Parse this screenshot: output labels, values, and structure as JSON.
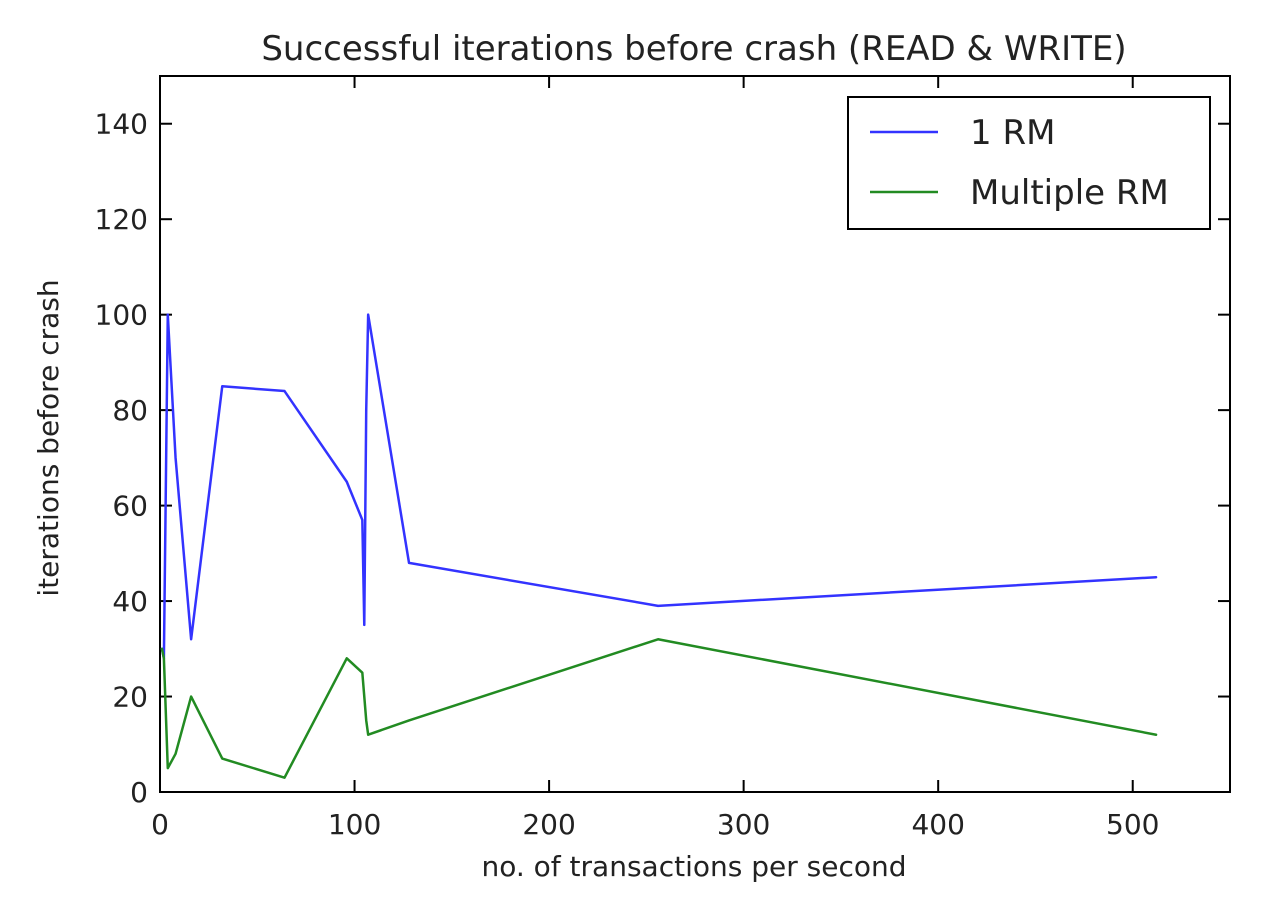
{
  "chart_data": {
    "type": "line",
    "title": "Successful iterations before crash (READ & WRITE)",
    "xlabel": "no. of transactions per second",
    "ylabel": "iterations before crash",
    "xlim": [
      0,
      550
    ],
    "ylim": [
      0,
      150
    ],
    "xticks": [
      0,
      100,
      200,
      300,
      400,
      500
    ],
    "yticks": [
      0,
      20,
      40,
      60,
      80,
      100,
      120,
      140
    ],
    "grid": false,
    "legend_position": "top-right",
    "series": [
      {
        "name": "1 RM",
        "color": "#3333ff",
        "x": [
          1,
          2,
          4,
          8,
          16,
          32,
          64,
          96,
          104,
          105,
          106,
          107,
          128,
          256,
          512
        ],
        "y": [
          30,
          28,
          100,
          70,
          32,
          85,
          84,
          65,
          57,
          35,
          80,
          100,
          48,
          39,
          45
        ]
      },
      {
        "name": "Multiple RM",
        "color": "#228b22",
        "x": [
          1,
          2,
          4,
          8,
          16,
          32,
          64,
          96,
          104,
          105,
          106,
          107,
          128,
          256,
          512
        ],
        "y": [
          30,
          28,
          5,
          8,
          20,
          7,
          3,
          28,
          25,
          20,
          15,
          12,
          15,
          32,
          12
        ]
      }
    ]
  }
}
